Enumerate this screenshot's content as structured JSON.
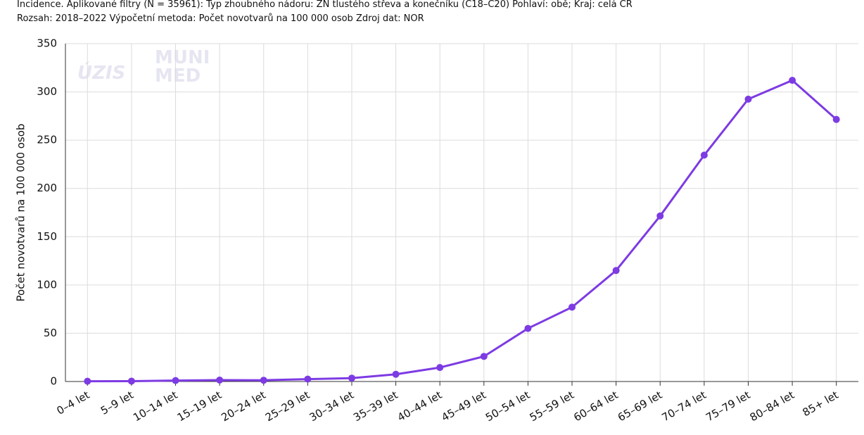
{
  "chart_data": {
    "type": "line",
    "title": "Incidence. Aplikované filtry (N = 35961): Typ zhoubného nádoru: ZN tlustého střeva a konečníku (C18–C20) Pohlaví: obě; Kraj: celá ČR",
    "subtitle": "Rozsah: 2018–2022 Výpočetní metoda: Počet novotvarů na 100 000 osob Zdroj dat: NOR",
    "watermark": [
      "ÚZIS",
      "MUNI",
      "MED"
    ],
    "y_label": "Počet novotvarů na 100 000 osob",
    "categories": [
      "0–4 let",
      "5–9 let",
      "10–14 let",
      "15–19 let",
      "20–24 let",
      "25–29 let",
      "30–34 let",
      "35–39 let",
      "40–44 let",
      "45–49 let",
      "50–54 let",
      "55–59 let",
      "60–64 let",
      "65–69 let",
      "70–74 let",
      "75–79 let",
      "80–84 let",
      "85+ let"
    ],
    "series": [
      {
        "name": "Incidence",
        "color": "#7d3be3",
        "values": [
          0.3,
          0.4,
          1,
          1.5,
          1.3,
          2.5,
          3.5,
          7.5,
          14.5,
          26,
          55,
          77,
          115,
          171.5,
          234.5,
          292.5,
          312,
          271.5
        ]
      }
    ],
    "ylim": [
      0,
      350
    ],
    "yticks": [
      0,
      50,
      100,
      150,
      200,
      250,
      300,
      350
    ],
    "grid": true
  }
}
